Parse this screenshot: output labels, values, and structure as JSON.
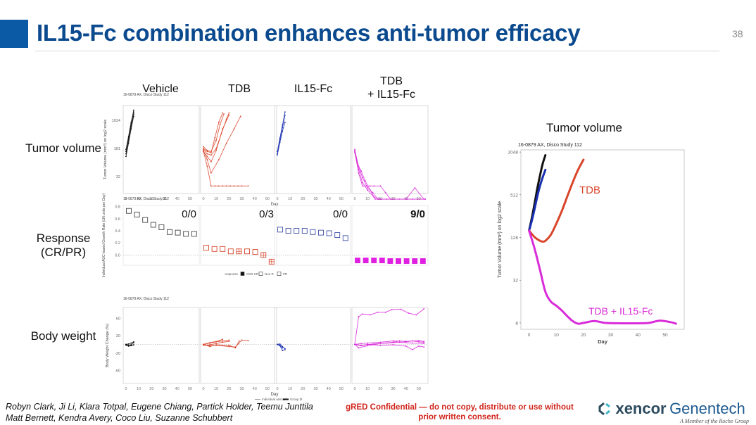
{
  "slide": {
    "title": "IL15-Fc combination enhances anti-tumor efficacy",
    "page_number": "38",
    "row_labels": [
      "Tumor volume",
      "Response",
      "(CR/PR)",
      "Body weight"
    ],
    "column_labels": [
      "Vehicle",
      "TDB",
      "IL15-Fc",
      "TDB",
      "+ IL15-Fc"
    ],
    "study_label": "16-0879 AX, Disco Study 112",
    "authors_line1": "Robyn Clark, Ji Li, Klara Totpal, Eugene Chiang, Partick Holder, Teemu Junttila",
    "authors_line2": "Matt Bernett, Kendra Avery, Coco Liu, Suzanne Schubbert",
    "confidential_line1": "gRED Confidential — do not copy, distribute or use without",
    "confidential_line2": "prior written consent.",
    "logo_xencor": "xencor",
    "logo_genentech": "Genentech",
    "logo_roche": "A Member of the Roche Group",
    "colors": {
      "vehicle": "#111111",
      "tdb": "#d9452b",
      "il15fc": "#1a2fb0",
      "combo": "#d92bd9",
      "title": "#0b4a8e"
    }
  },
  "chart_data": [
    {
      "id": "tumor-volume-panels",
      "type": "line",
      "title": "16-0879 AX, Disco Study 112",
      "xlabel": "Day",
      "ylabel": "Tumor Volume (mm³) on log2 scale",
      "xlim": [
        0,
        55
      ],
      "ylim_log2": [
        3.5,
        11.3
      ],
      "y_ticks": [
        32,
        181,
        1024
      ],
      "x_ticks": [
        0,
        10,
        20,
        30,
        40,
        50
      ],
      "panels": [
        {
          "name": "Vehicle",
          "color": "#111111",
          "series": [
            {
              "x": [
                0,
                2,
                4,
                6
              ],
              "y": [
                150,
                340,
                820,
                1900
              ]
            },
            {
              "x": [
                0,
                2,
                4,
                6
              ],
              "y": [
                130,
                300,
                700,
                1500
              ]
            },
            {
              "x": [
                0,
                2,
                4,
                6
              ],
              "y": [
                170,
                380,
                900,
                1700
              ]
            },
            {
              "x": [
                0,
                2,
                4,
                6
              ],
              "y": [
                110,
                250,
                600,
                1300
              ]
            }
          ]
        },
        {
          "name": "TDB",
          "color": "#d9452b",
          "series": [
            {
              "x": [
                0,
                3,
                6,
                10,
                14,
                18,
                20
              ],
              "y": [
                170,
                130,
                120,
                180,
                450,
                1100,
                1600
              ]
            },
            {
              "x": [
                0,
                3,
                6,
                10,
                13,
                16
              ],
              "y": [
                200,
                160,
                150,
                300,
                800,
                1500
              ]
            },
            {
              "x": [
                0,
                3,
                6,
                9,
                12,
                15
              ],
              "y": [
                180,
                150,
                140,
                350,
                900,
                1600
              ]
            },
            {
              "x": [
                0,
                3,
                6,
                10,
                15,
                20
              ],
              "y": [
                150,
                110,
                80,
                160,
                600,
                1400
              ]
            },
            {
              "x": [
                0,
                3,
                6,
                12,
                18,
                24,
                29
              ],
              "y": [
                160,
                90,
                40,
                90,
                250,
                600,
                1300
              ]
            },
            {
              "x": [
                0,
                3,
                6,
                9,
                12,
                15,
                18,
                21,
                24,
                27,
                30,
                35
              ],
              "y": [
                150,
                60,
                18,
                18,
                18,
                18,
                18,
                18,
                18,
                18,
                18,
                18
              ]
            }
          ]
        },
        {
          "name": "IL15-Fc",
          "color": "#1a2fb0",
          "series": [
            {
              "x": [
                0,
                2,
                4,
                6
              ],
              "y": [
                130,
                300,
                650,
                1400
              ]
            },
            {
              "x": [
                0,
                2,
                4,
                6
              ],
              "y": [
                120,
                260,
                520,
                900
              ]
            },
            {
              "x": [
                0,
                2,
                4,
                6
              ],
              "y": [
                150,
                340,
                760,
                1700
              ]
            }
          ]
        },
        {
          "name": "TDB + IL15-Fc",
          "color": "#d92bd9",
          "series": [
            {
              "x": [
                0,
                3,
                6,
                10,
                14,
                18,
                25,
                35,
                45,
                55
              ],
              "y": [
                160,
                60,
                30,
                16,
                12,
                8,
                8,
                8,
                8,
                8
              ]
            },
            {
              "x": [
                0,
                3,
                6,
                9,
                12,
                15,
                20,
                24,
                28
              ],
              "y": [
                150,
                40,
                18,
                18,
                18,
                18,
                18,
                12,
                8
              ]
            },
            {
              "x": [
                0,
                2,
                5,
                8,
                12,
                16,
                20,
                30,
                40,
                47,
                54
              ],
              "y": [
                140,
                70,
                45,
                25,
                14,
                8,
                8,
                8,
                8,
                16,
                8
              ]
            },
            {
              "x": [
                0,
                3,
                6,
                10,
                15,
                20,
                40,
                55
              ],
              "y": [
                170,
                50,
                22,
                14,
                9,
                8,
                8,
                8
              ]
            }
          ]
        }
      ]
    },
    {
      "id": "response-panels",
      "type": "scatter",
      "title": "16-0879 AX, Disco Study 112",
      "ylabel": "Individual AUC-based Growth Rate (LN units per Day)",
      "ylim": [
        -0.17,
        0.82
      ],
      "y_ticks": [
        0.0,
        0.2,
        0.4,
        0.6,
        0.8
      ],
      "legend": {
        "title": "response",
        "entries": [
          "CDS CR",
          "Non R",
          "PR"
        ],
        "position": "bottom"
      },
      "panels": [
        {
          "name": "Vehicle",
          "color": "#444444",
          "annotation": "0/0",
          "values": [
            0.73,
            0.67,
            0.58,
            0.5,
            0.46,
            0.38,
            0.37,
            0.35,
            0.35
          ],
          "marker": [
            "open",
            "open",
            "open",
            "open",
            "open",
            "open",
            "open",
            "open",
            "open"
          ]
        },
        {
          "name": "TDB",
          "color": "#d9452b",
          "annotation": "0/3",
          "values": [
            0.12,
            0.1,
            0.1,
            0.06,
            0.06,
            0.06,
            0.05,
            0.0,
            -0.11
          ],
          "marker": [
            "open",
            "open",
            "open",
            "open",
            "pr",
            "open",
            "open",
            "pr",
            "pr"
          ]
        },
        {
          "name": "IL15-Fc",
          "color": "#4050a8",
          "annotation": "0/0",
          "values": [
            0.42,
            0.4,
            0.4,
            0.4,
            0.38,
            0.37,
            0.36,
            0.33,
            0.28
          ],
          "marker": [
            "open",
            "open",
            "open",
            "open",
            "open",
            "open",
            "open",
            "open",
            "open"
          ]
        },
        {
          "name": "TDB + IL15-Fc",
          "color": "#e020e0",
          "annotation": "9/0",
          "values": [
            -0.09,
            -0.09,
            -0.09,
            -0.09,
            -0.1,
            -0.1,
            -0.1,
            -0.1,
            -0.1
          ],
          "marker": [
            "filled",
            "filled",
            "filled",
            "filled",
            "filled",
            "filled",
            "filled",
            "filled",
            "filled"
          ]
        }
      ]
    },
    {
      "id": "body-weight-panels",
      "type": "line",
      "title": "16-0879 AX, Disco Study 112",
      "xlabel": "Day",
      "ylabel": "Body Weight Change (%)",
      "ylim": [
        -90,
        85
      ],
      "y_ticks": [
        -60,
        -20,
        20,
        60
      ],
      "x_ticks": [
        0,
        10,
        20,
        30,
        40,
        50
      ],
      "legend": {
        "entries": [
          "Individual animal",
          "Group fit"
        ],
        "position": "bottom"
      },
      "panels": [
        {
          "name": "Vehicle",
          "color": "#111111",
          "series": [
            {
              "x": [
                0,
                2,
                4,
                6
              ],
              "y": [
                0,
                -2,
                -1,
                4
              ]
            },
            {
              "x": [
                0,
                2,
                4,
                6
              ],
              "y": [
                -2,
                -4,
                -3,
                -1
              ]
            },
            {
              "x": [
                0,
                2,
                4,
                6
              ],
              "y": [
                0,
                1,
                3,
                6
              ]
            }
          ]
        },
        {
          "name": "TDB",
          "color": "#d9452b",
          "series": [
            {
              "x": [
                0,
                5,
                10,
                15,
                20
              ],
              "y": [
                0,
                3,
                6,
                8,
                10
              ]
            },
            {
              "x": [
                0,
                5,
                10,
                15,
                20
              ],
              "y": [
                -2,
                -1,
                2,
                5,
                7
              ]
            },
            {
              "x": [
                0,
                5,
                12,
                15
              ],
              "y": [
                0,
                4,
                8,
                12
              ]
            },
            {
              "x": [
                0,
                5,
                10,
                20,
                25,
                30,
                35
              ],
              "y": [
                0,
                -3,
                -2,
                -5,
                -6,
                10,
                9
              ]
            },
            {
              "x": [
                0,
                5,
                10,
                20,
                25,
                28
              ],
              "y": [
                0,
                -5,
                -1,
                -2,
                -8,
                8
              ]
            }
          ]
        },
        {
          "name": "IL15-Fc",
          "color": "#1a2fb0",
          "series": [
            {
              "x": [
                0,
                2,
                4,
                6
              ],
              "y": [
                0,
                -3,
                -14,
                -12
              ]
            },
            {
              "x": [
                0,
                2,
                4,
                6
              ],
              "y": [
                0,
                1,
                -5,
                -10
              ]
            },
            {
              "x": [
                0,
                2,
                4
              ],
              "y": [
                0,
                -2,
                -8
              ]
            }
          ]
        },
        {
          "name": "TDB + IL15-Fc",
          "color": "#d92bd9",
          "series": [
            {
              "x": [
                0,
                3,
                6,
                12,
                18,
                24,
                29,
                36,
                42,
                48,
                54
              ],
              "y": [
                0,
                64,
                70,
                68,
                74,
                74,
                80,
                81,
                72,
                68,
                82
              ]
            },
            {
              "x": [
                0,
                3,
                10,
                20,
                30,
                35,
                40,
                45,
                50,
                54
              ],
              "y": [
                0,
                -8,
                -3,
                2,
                5,
                8,
                6,
                8,
                6,
                5
              ]
            },
            {
              "x": [
                0,
                5,
                10,
                20,
                30,
                40,
                50,
                54
              ],
              "y": [
                0,
                2,
                3,
                5,
                8,
                7,
                9,
                7
              ]
            },
            {
              "x": [
                0,
                5,
                10,
                20,
                30,
                40,
                45,
                50,
                54
              ],
              "y": [
                0,
                -3,
                0,
                -2,
                -1,
                -4,
                -12,
                -4,
                -6
              ]
            },
            {
              "x": [
                0,
                5,
                15,
                25,
                35,
                45,
                54
              ],
              "y": [
                0,
                -2,
                1,
                3,
                5,
                3,
                2
              ]
            }
          ]
        }
      ]
    },
    {
      "id": "tumor-volume-summary",
      "type": "line",
      "heading": "Tumor volume",
      "title": "16-0879 AX, Disco Study 112",
      "xlabel": "Day",
      "ylabel": "Tumor Volume (mm³) on log2 scale",
      "xlim": [
        -3,
        57
      ],
      "y_ticks": [
        8,
        32,
        128,
        512,
        2048
      ],
      "x_ticks": [
        0,
        10,
        20,
        30,
        40,
        50
      ],
      "series": [
        {
          "name": "Vehicle",
          "color": "#111111",
          "x": [
            0,
            1,
            2,
            3,
            4,
            5,
            6
          ],
          "y": [
            160,
            240,
            380,
            620,
            950,
            1400,
            1850
          ]
        },
        {
          "name": "IL15-Fc",
          "color": "#1a2fb0",
          "x": [
            0,
            1,
            2,
            3,
            4,
            5,
            6
          ],
          "y": [
            160,
            220,
            320,
            480,
            680,
            900,
            1150
          ]
        },
        {
          "name": "TDB",
          "color": "#d9452b",
          "x": [
            0,
            2,
            4,
            5,
            6,
            8,
            10,
            12,
            14,
            16,
            18,
            20
          ],
          "y": [
            160,
            130,
            115,
            112,
            115,
            140,
            200,
            300,
            480,
            760,
            1150,
            1600
          ]
        },
        {
          "name": "TDB + IL15-Fc",
          "color": "#d92bd9",
          "x": [
            0,
            2,
            4,
            6,
            8,
            10,
            12,
            14,
            16,
            18,
            20,
            24,
            28,
            34,
            40,
            44,
            48,
            52,
            54
          ],
          "y": [
            160,
            90,
            45,
            22,
            16,
            14,
            12,
            10,
            8.5,
            7.8,
            8.0,
            8.5,
            8.0,
            7.9,
            7.9,
            8.0,
            8.6,
            8.2,
            7.8
          ]
        }
      ],
      "annotations": [
        "TDB",
        "TDB + IL15-Fc"
      ]
    }
  ]
}
